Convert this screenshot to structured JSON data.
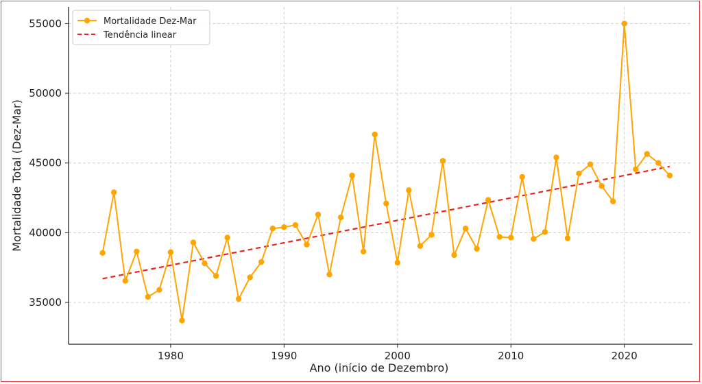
{
  "chart_data": {
    "type": "line",
    "title": "",
    "xlabel": "Ano (início de Dezembro)",
    "ylabel": "Mortalidade Total (Dez-Mar)",
    "xlim": [
      1971,
      2026
    ],
    "ylim": [
      32000,
      56200
    ],
    "xticks": [
      1980,
      1990,
      2000,
      2010,
      2020
    ],
    "yticks": [
      35000,
      40000,
      45000,
      50000,
      55000
    ],
    "grid": true,
    "legend_position": "top-left",
    "colors": {
      "series": "#ffa500",
      "trend": "#e8241c",
      "grid": "#cfcfcf",
      "axis": "#222222"
    },
    "series": [
      {
        "name": "Mortalidade Dez-Mar",
        "style": "line-markers",
        "x": [
          1974,
          1975,
          1976,
          1977,
          1978,
          1979,
          1980,
          1981,
          1982,
          1983,
          1984,
          1985,
          1986,
          1987,
          1988,
          1989,
          1990,
          1991,
          1992,
          1993,
          1994,
          1995,
          1996,
          1997,
          1998,
          1999,
          2000,
          2001,
          2002,
          2003,
          2004,
          2005,
          2006,
          2007,
          2008,
          2009,
          2010,
          2011,
          2012,
          2013,
          2014,
          2015,
          2016,
          2017,
          2018,
          2019,
          2020,
          2021,
          2022,
          2023,
          2024
        ],
        "values": [
          38550,
          42900,
          36550,
          38650,
          35400,
          35900,
          38600,
          33700,
          39300,
          37800,
          36900,
          39650,
          35250,
          36800,
          37900,
          40300,
          40400,
          40550,
          39150,
          41300,
          37000,
          41100,
          44100,
          38650,
          47050,
          42100,
          37850,
          43050,
          39050,
          39850,
          45150,
          38400,
          40300,
          38850,
          42350,
          39700,
          39650,
          44000,
          39550,
          40050,
          45400,
          39600,
          44250,
          44900,
          43350,
          42250,
          55000,
          44550,
          45650,
          45000,
          44100
        ]
      },
      {
        "name": "Tendência linear",
        "style": "dashed",
        "x": [
          1974,
          2024
        ],
        "values": [
          36700,
          44750
        ]
      }
    ]
  }
}
